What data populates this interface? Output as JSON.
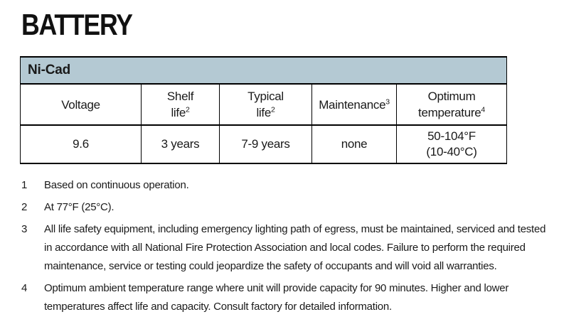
{
  "page": {
    "title": "BATTERY",
    "background_color": "#ffffff",
    "text_color": "#1a1a1a"
  },
  "table": {
    "group_header": "Ni-Cad",
    "group_header_bg": "#b4c9d3",
    "border_color": "#000000",
    "columns": [
      {
        "lines": [
          "Voltage"
        ],
        "sup": ""
      },
      {
        "lines": [
          "Shelf",
          "life"
        ],
        "sup": "2"
      },
      {
        "lines": [
          "Typical",
          "life"
        ],
        "sup": "2"
      },
      {
        "lines": [
          "Maintenance"
        ],
        "sup": "3"
      },
      {
        "lines": [
          "Optimum",
          "temperature"
        ],
        "sup": "4"
      }
    ],
    "rows": [
      [
        "9.6",
        "3 years",
        "7-9 years",
        "none",
        "50-104°F\n(10-40°C)"
      ]
    ]
  },
  "footnotes": [
    {
      "num": "1",
      "lines": [
        "Based on continuous operation."
      ]
    },
    {
      "num": "2",
      "lines": [
        "At 77°F (25°C)."
      ]
    },
    {
      "num": "3",
      "lines": [
        "All life safety equipment, including emergency lighting path of egress, must be maintained, serviced and tested",
        "in accordance with all National Fire Protection Association and local codes. Failure to perform the required",
        "maintenance, service or testing could jeopardize the safety of occupants and will void all warranties."
      ]
    },
    {
      "num": "4",
      "lines": [
        "Optimum ambient temperature range where unit will provide capacity for 90 minutes. Higher and lower",
        "temperatures affect life and capacity. Consult factory for detailed information."
      ]
    }
  ]
}
